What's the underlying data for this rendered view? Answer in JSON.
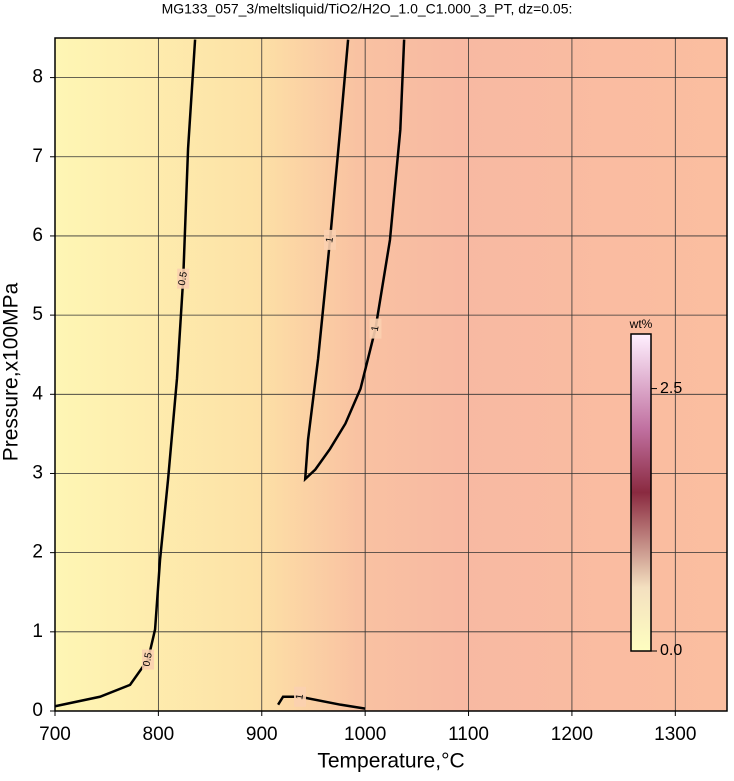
{
  "chart_data": {
    "type": "contour",
    "title": "MG133_057_3/meltsliquid/TiO2/H2O_1.0_C1.000_3_PT, dz=0.05:",
    "x_label": "Temperature,°C",
    "y_label": "Pressure,x100MPa",
    "xlim": [
      700,
      1350
    ],
    "xticks": [
      700,
      800,
      900,
      1000,
      1100,
      1200,
      1300
    ],
    "ylim": [
      0,
      8.5
    ],
    "yticks": [
      0,
      1,
      2,
      3,
      4,
      5,
      6,
      7,
      8
    ],
    "grid": true,
    "contours": [
      {
        "level": 0.5,
        "x": [
          700,
          743.5,
          772.6,
          790,
          796.8,
          801.6,
          809.4,
          818,
          824,
          828.7,
          835.5
        ],
        "y": [
          0.06,
          0.18,
          0.33,
          0.65,
          1.03,
          1.91,
          2.93,
          4.2,
          5.46,
          7.1,
          8.48
        ]
      },
      {
        "level": 1,
        "x": [
          983.5,
          975.8,
          966,
          954.5,
          944.8,
          942,
          951.8,
          966,
          980.9,
          995.5,
          1010,
          1024,
          1034,
          1037.7
        ],
        "y": [
          8.48,
          7.34,
          5.95,
          4.45,
          3.43,
          2.93,
          3.05,
          3.31,
          3.63,
          4.07,
          4.83,
          5.95,
          7.34,
          8.48
        ]
      },
      {
        "level": 1,
        "x": [
          915.8,
          920.6,
          927.4,
          937,
          976,
          1000
        ],
        "y": [
          0.08,
          0.18,
          0.18,
          0.18,
          0.08,
          0.03
        ]
      }
    ],
    "colorbar": {
      "label": "wt%",
      "clim": [
        0,
        3.02
      ],
      "ticks": [
        {
          "value": 0,
          "label": "0.0"
        },
        2.5
      ]
    }
  }
}
